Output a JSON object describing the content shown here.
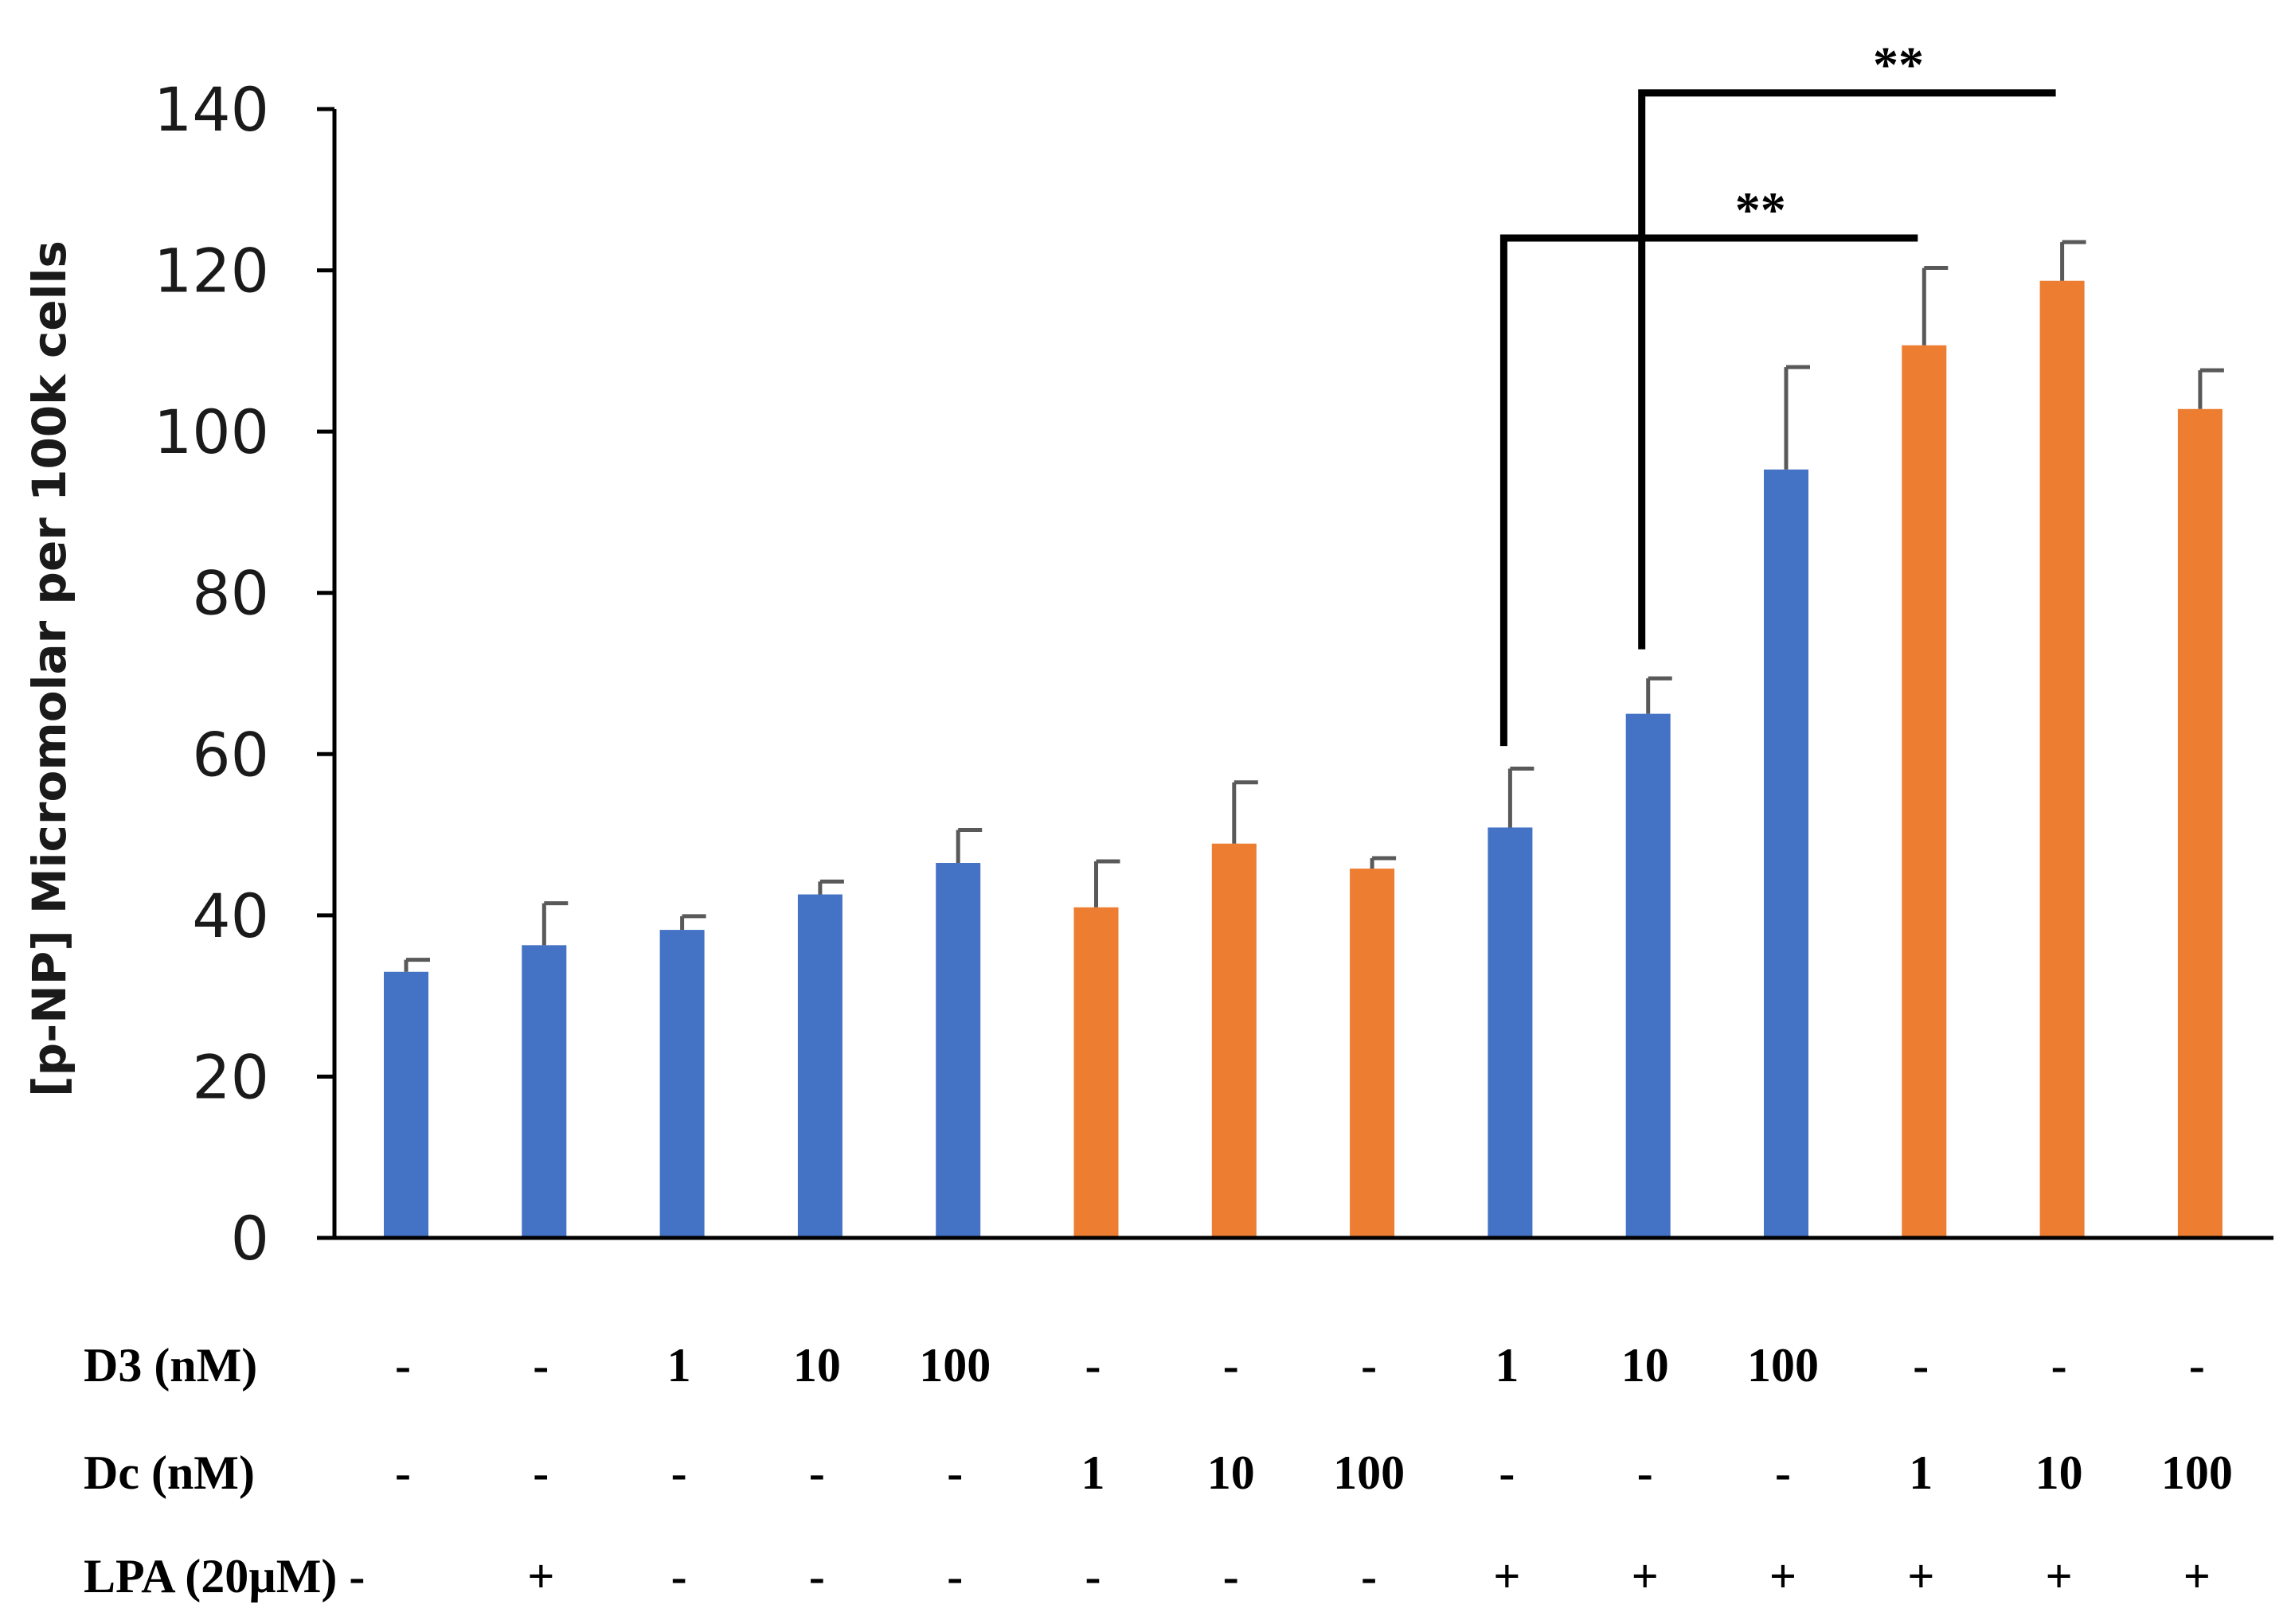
{
  "chart_data": {
    "type": "bar",
    "title": "",
    "xlabel": "",
    "ylabel": "[p-NP] Micromolar per 100k cells",
    "ylim": [
      0,
      140
    ],
    "yticks": [
      "0",
      "20",
      "40",
      "60",
      "80",
      "100",
      "120",
      "140"
    ],
    "colors": {
      "D3": "#4472C4",
      "Dc": "#ED7D31",
      "axis": "#000000",
      "error": "#595959"
    },
    "bars": [
      {
        "group": "D3",
        "value": 33.0,
        "error": 1.5
      },
      {
        "group": "D3",
        "value": 36.3,
        "error": 5.2
      },
      {
        "group": "D3",
        "value": 38.2,
        "error": 1.7
      },
      {
        "group": "D3",
        "value": 42.6,
        "error": 1.6
      },
      {
        "group": "D3",
        "value": 46.5,
        "error": 4.1
      },
      {
        "group": "Dc",
        "value": 41.0,
        "error": 5.7
      },
      {
        "group": "Dc",
        "value": 48.9,
        "error": 7.6
      },
      {
        "group": "Dc",
        "value": 45.8,
        "error": 1.3
      },
      {
        "group": "D3",
        "value": 50.9,
        "error": 7.3
      },
      {
        "group": "D3",
        "value": 65.0,
        "error": 4.4
      },
      {
        "group": "D3",
        "value": 95.3,
        "error": 12.7
      },
      {
        "group": "Dc",
        "value": 110.7,
        "error": 9.6
      },
      {
        "group": "Dc",
        "value": 118.7,
        "error": 4.8
      },
      {
        "group": "Dc",
        "value": 102.8,
        "error": 4.8
      }
    ],
    "conditions": [
      {
        "label": "D3 (nM)",
        "values": [
          "-",
          "-",
          "1",
          "10",
          "100",
          "-",
          "-",
          "-",
          "1",
          "10",
          "100",
          "-",
          "-",
          "-"
        ]
      },
      {
        "label": "Dc (nM)",
        "values": [
          "-",
          "-",
          "-",
          "-",
          "-",
          "1",
          "10",
          "100",
          "-",
          "-",
          "-",
          "1",
          "10",
          "100"
        ]
      },
      {
        "label": "LPA (20µM) -",
        "values": [
          "",
          "+",
          "-",
          "-",
          "-",
          "-",
          "-",
          "-",
          "+",
          "+",
          "+",
          "+",
          "+",
          "+"
        ]
      }
    ],
    "significance": [
      {
        "from_bar": 8,
        "to_bar": 11,
        "label": "**",
        "drop_to": 61,
        "bracket_y": 124
      },
      {
        "from_bar": 9,
        "to_bar": 12,
        "label": "**",
        "drop_to": 73,
        "bracket_y": 142
      }
    ]
  }
}
